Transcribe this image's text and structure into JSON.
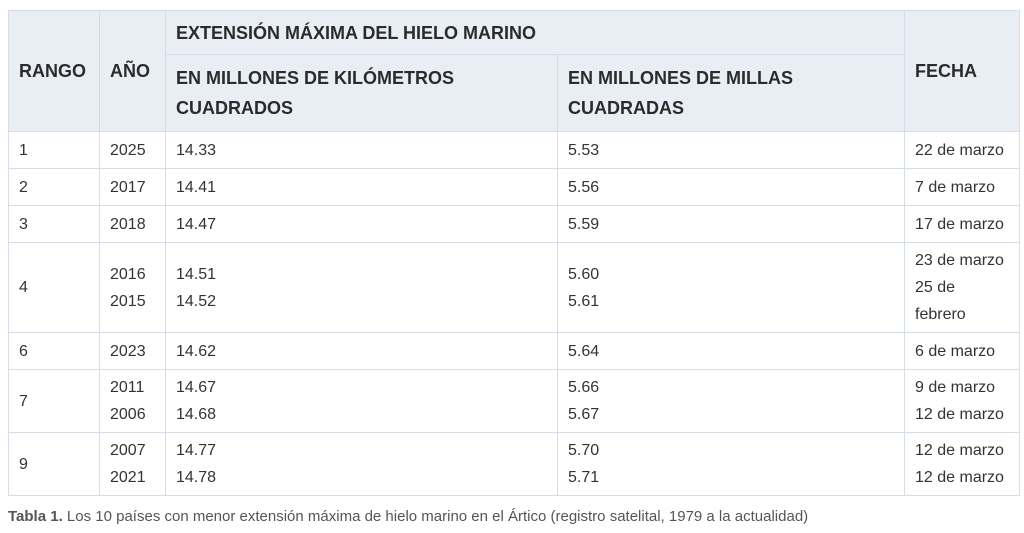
{
  "table": {
    "headers": {
      "rank": "RANGO",
      "year": "AÑO",
      "group": "EXTENSIÓN MÁXIMA DEL HIELO MARINO",
      "km_line1": "EN MILLONES DE KILÓMETROS",
      "km_line2": "CUADRADOS",
      "mi_line1": "EN MILLONES DE MILLAS",
      "mi_line2": "CUADRADAS",
      "date": "FECHA"
    },
    "rows": [
      {
        "rank": "1",
        "years": [
          "2025"
        ],
        "km": [
          "14.33"
        ],
        "mi": [
          "5.53"
        ],
        "dates": [
          "22 de marzo"
        ]
      },
      {
        "rank": "2",
        "years": [
          "2017"
        ],
        "km": [
          "14.41"
        ],
        "mi": [
          "5.56"
        ],
        "dates": [
          "7 de marzo"
        ]
      },
      {
        "rank": "3",
        "years": [
          "2018"
        ],
        "km": [
          "14.47"
        ],
        "mi": [
          "5.59"
        ],
        "dates": [
          "17 de marzo"
        ]
      },
      {
        "rank": "4",
        "years": [
          "2016",
          "2015"
        ],
        "km": [
          "14.51",
          "14.52"
        ],
        "mi": [
          "5.60",
          "5.61"
        ],
        "dates": [
          "23 de marzo",
          "25 de",
          "febrero"
        ]
      },
      {
        "rank": "6",
        "years": [
          "2023"
        ],
        "km": [
          "14.62"
        ],
        "mi": [
          "5.64"
        ],
        "dates": [
          "6 de marzo"
        ]
      },
      {
        "rank": "7",
        "years": [
          "2011",
          "2006"
        ],
        "km": [
          "14.67",
          "14.68"
        ],
        "mi": [
          "5.66",
          "5.67"
        ],
        "dates": [
          "9 de marzo",
          "12 de marzo"
        ]
      },
      {
        "rank": "9",
        "years": [
          "2007",
          "2021"
        ],
        "km": [
          "14.77",
          "14.78"
        ],
        "mi": [
          "5.70",
          "5.71"
        ],
        "dates": [
          "12 de marzo",
          "12 de marzo"
        ]
      }
    ]
  },
  "caption": {
    "label": "Tabla 1.",
    "text": "Los 10 países con menor extensión máxima de hielo marino en el Ártico (registro satelital, 1979 a la actualidad)"
  },
  "colors": {
    "header_bg": "#e9eef5",
    "border": "#d6dde6"
  }
}
